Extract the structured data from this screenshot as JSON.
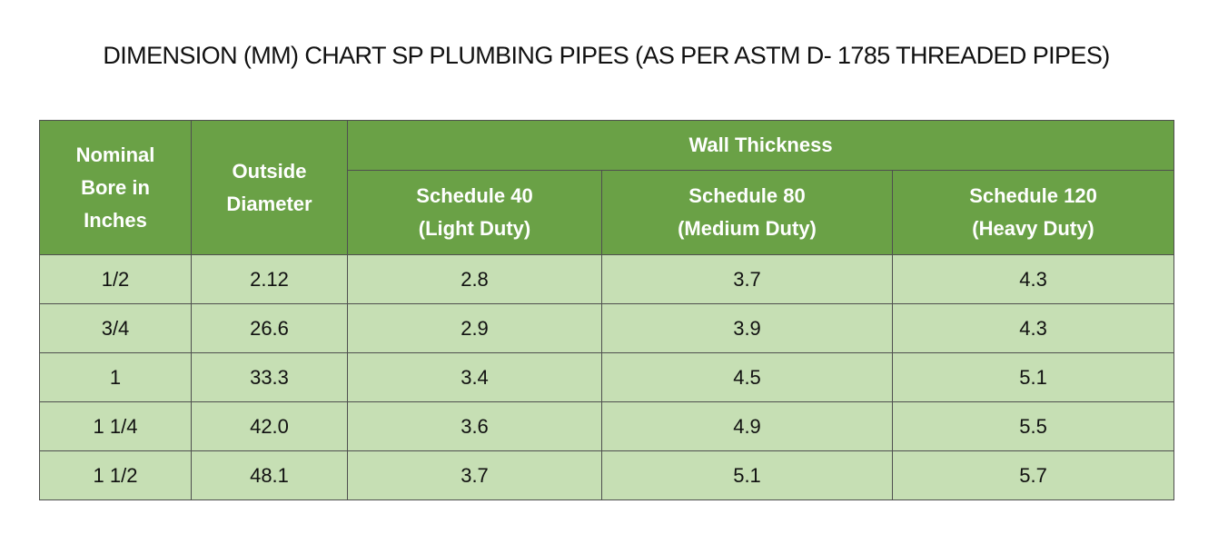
{
  "title": "DIMENSION (MM) CHART SP PLUMBING PIPES (AS PER ASTM D- 1785 THREADED PIPES)",
  "colors": {
    "header_bg": "#6aa146",
    "header_text": "#ffffff",
    "cell_bg": "#c6dfb4",
    "border": "#4f4f4f"
  },
  "table": {
    "headers": {
      "nominal_bore": [
        "Nominal",
        "Bore in",
        "Inches"
      ],
      "outside_diameter": [
        "Outside",
        "Diameter"
      ],
      "wall_thickness": "Wall Thickness",
      "schedule_40": [
        "Schedule 40",
        "(Light Duty)"
      ],
      "schedule_80": [
        "Schedule 80",
        "(Medium Duty)"
      ],
      "schedule_120": [
        "Schedule 120",
        "(Heavy Duty)"
      ]
    },
    "rows": [
      [
        "1/2",
        "2.12",
        "2.8",
        "3.7",
        "4.3"
      ],
      [
        "3/4",
        "26.6",
        "2.9",
        "3.9",
        "4.3"
      ],
      [
        "1",
        "33.3",
        "3.4",
        "4.5",
        "5.1"
      ],
      [
        "1 1/4",
        "42.0",
        "3.6",
        "4.9",
        "5.5"
      ],
      [
        "1 1/2",
        "48.1",
        "3.7",
        "5.1",
        "5.7"
      ]
    ]
  }
}
